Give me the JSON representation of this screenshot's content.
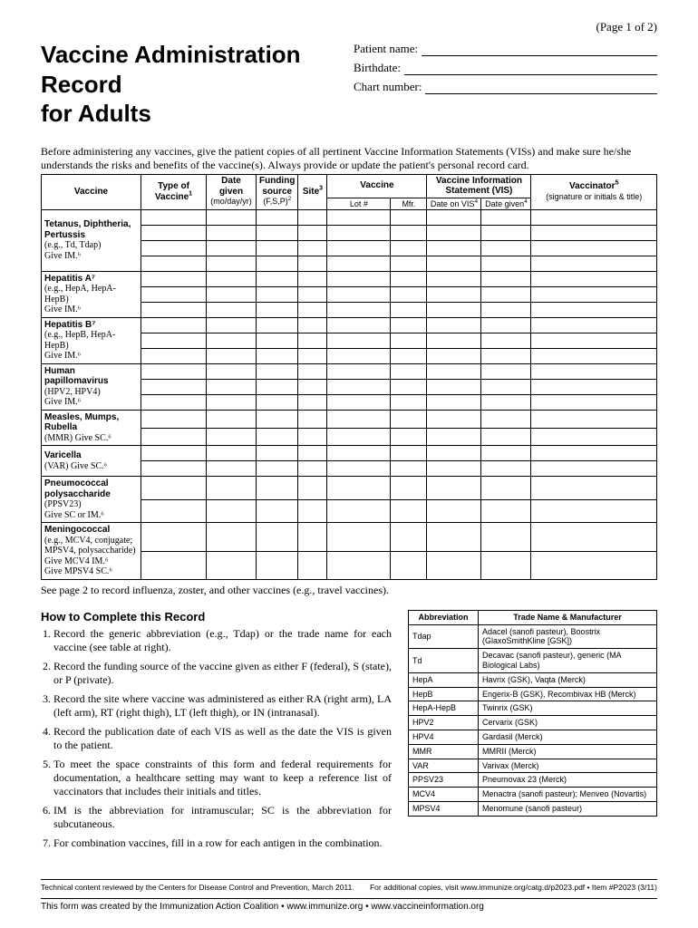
{
  "page_label": "(Page 1 of 2)",
  "title_line1": "Vaccine Administration Record",
  "title_line2": "for Adults",
  "patient": {
    "name_label": "Patient name:",
    "birthdate_label": "Birthdate:",
    "chart_label": "Chart number:"
  },
  "intro": "Before administering any vaccines, give the patient copies of all pertinent Vaccine Information Statements (VISs) and make sure he/she understands the risks and benefits of the vaccine(s). Always provide or update the patient's personal record card.",
  "headers": {
    "vaccine": "Vaccine",
    "type": "Type of Vaccine",
    "type_sup": "1",
    "date_given": "Date given",
    "date_given_sub": "(mo/day/yr)",
    "funding": "Funding source",
    "funding_sub": "(F,S,P)",
    "funding_sup": "2",
    "site": "Site",
    "site_sup": "3",
    "vaccine2": "Vaccine",
    "lot": "Lot #",
    "mfr": "Mfr.",
    "vis": "Vaccine Information Statement (VIS)",
    "date_on_vis": "Date on VIS",
    "date_on_vis_sup": "4",
    "date_given2": "Date given",
    "date_given2_sup": "4",
    "vaccinator": "Vaccinator",
    "vaccinator_sup": "5",
    "vaccinator_sub": "(signature or initials & title)"
  },
  "vaccines": [
    {
      "name": "Tetanus, Diphtheria, Pertussis",
      "desc": "(e.g., Td, Tdap)\nGive IM.⁶",
      "rows": 4
    },
    {
      "name": "Hepatitis A⁷",
      "desc": "(e.g., HepA, HepA-HepB)\nGive IM.⁶",
      "rows": 3
    },
    {
      "name": "Hepatitis B⁷",
      "desc": "(e.g., HepB, HepA-HepB)\nGive IM.⁶",
      "rows": 3
    },
    {
      "name": "Human papillomavirus",
      "desc": "(HPV2, HPV4)\nGive IM.⁶",
      "rows": 3
    },
    {
      "name": "Measles, Mumps, Rubella",
      "desc": "(MMR) Give SC.⁶",
      "rows": 2
    },
    {
      "name": "Varicella",
      "desc": "(VAR) Give SC.⁶",
      "rows": 2
    },
    {
      "name": "Pneumococcal polysaccharide",
      "desc_inline": " (PPSV23)",
      "desc": "Give SC or IM.⁶",
      "rows": 2
    },
    {
      "name": "Meningococcal",
      "desc": "(e.g., MCV4, conjugate; MPSV4, polysaccharide)\nGive MCV4 IM.⁶\nGive MPSV4 SC.⁶",
      "rows": 2
    }
  ],
  "note": "See page 2 to record influenza, zoster, and other vaccines (e.g., travel vaccines).",
  "howto_title": "How to Complete this Record",
  "howto": [
    "Record the generic abbreviation (e.g., Tdap) or the trade name for each vaccine (see table at right).",
    "Record the funding source of the vaccine given as either F (federal), S (state), or P (private).",
    "Record the site where vaccine was administered as either RA (right arm), LA (left arm), RT (right thigh), LT (left thigh), or IN (intranasal).",
    "Record the publication date of each VIS as well as the date the VIS is given to the patient.",
    "To meet the space constraints of this form and federal requirements for documentation, a healthcare setting may want to keep a reference list of vaccinators that includes their initials and titles.",
    "IM is the abbreviation for intramuscular; SC is the abbreviation for subcutaneous.",
    "For combination vaccines, fill in a row for each antigen in the combination."
  ],
  "abbr_headers": {
    "abbr": "Abbreviation",
    "trade": "Trade Name & Manufacturer"
  },
  "abbr": [
    {
      "a": "Tdap",
      "t": "Adacel (sanofi pasteur), Boostrix (GlaxoSmithKline [GSK])"
    },
    {
      "a": "Td",
      "t": "Decavac (sanofi pasteur), generic (MA Biological Labs)"
    },
    {
      "a": "HepA",
      "t": "Havrix (GSK), Vaqta (Merck)"
    },
    {
      "a": "HepB",
      "t": "Engerix-B (GSK), Recombivax HB (Merck)"
    },
    {
      "a": "HepA-HepB",
      "t": "Twinrix (GSK)"
    },
    {
      "a": "HPV2",
      "t": "Cervarix (GSK)"
    },
    {
      "a": "HPV4",
      "t": "Gardasil (Merck)"
    },
    {
      "a": "MMR",
      "t": "MMRII (Merck)"
    },
    {
      "a": "VAR",
      "t": "Varivax (Merck)"
    },
    {
      "a": "PPSV23",
      "t": "Pneumovax 23 (Merck)"
    },
    {
      "a": "MCV4",
      "t": "Menactra (sanofi pasteur); Menveo (Novartis)"
    },
    {
      "a": "MPSV4",
      "t": "Menomune (sanofi pasteur)"
    }
  ],
  "footer1_left": "Technical content reviewed by the Centers for Disease Control and Prevention, March 2011.",
  "footer1_right": "For additional copies, visit www.immunize.org/catg.d/p2023.pdf  •  Item #P2023 (3/11)",
  "footer2": "This form was created by the Immunization Action Coalition  •  www.immunize.org  •  www.vaccineinformation.org"
}
